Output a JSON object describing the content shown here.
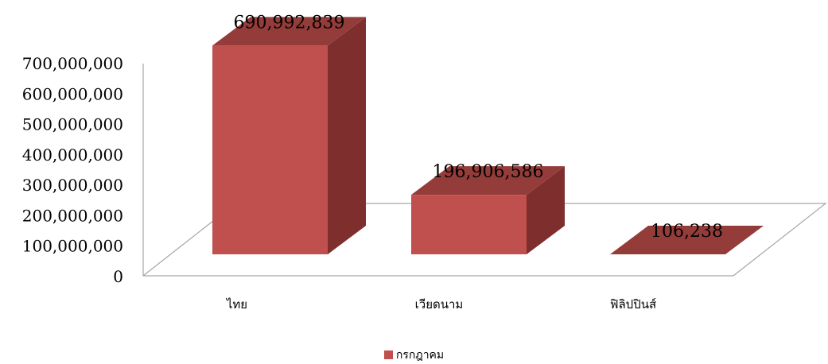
{
  "chart_data": {
    "type": "bar",
    "title": "",
    "xlabel": "",
    "ylabel": "",
    "categories": [
      "ไทย",
      "เวียดนาม",
      "ฟิลิปปินส์"
    ],
    "series": [
      {
        "name": "กรกฎาคม",
        "values": [
          690992839,
          196906586,
          106238
        ]
      }
    ],
    "data_labels": [
      "690,992,839",
      "196,906,586",
      "106,238"
    ],
    "y_ticks": [
      "0",
      "100,000,000",
      "200,000,000",
      "300,000,000",
      "400,000,000",
      "500,000,000",
      "600,000,000",
      "700,000,000"
    ],
    "ylim": [
      0,
      700000000
    ],
    "grid": false,
    "three_d": true,
    "legend_position": "bottom",
    "colors": {
      "front": "#C0504D",
      "side": "#7F2E2E",
      "top": "#943C3A",
      "floor_line": "#A6A6A6"
    }
  }
}
